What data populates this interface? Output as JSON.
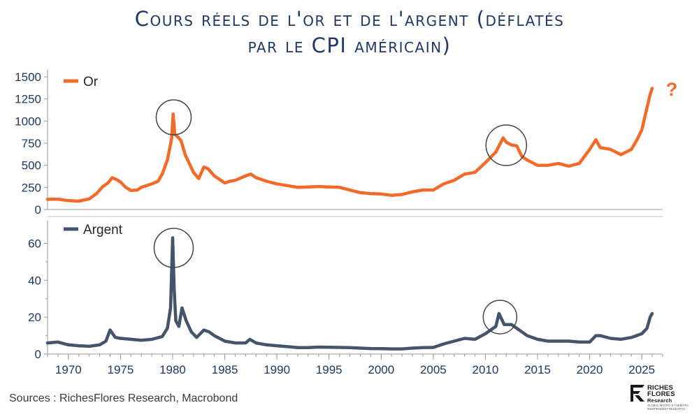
{
  "header": {
    "title_line1": "Cours réels de l'or et de l'argent (déflatés",
    "title_line2": "par le CPI américain)"
  },
  "footer": {
    "source": "Sources : RichesFlores Research, Macrobond"
  },
  "logo": {
    "line1": "Riches",
    "line2": "Flores",
    "line3": "Research",
    "tagline1": "GLOBAL MACRO & THEMATIC",
    "tagline2": "INDEPENDENT RESEARCH"
  },
  "chart_data": [
    {
      "type": "line",
      "title": "",
      "legend_position": "top-left",
      "series": [
        {
          "name": "Or",
          "color": "#f26b2a",
          "x": [
            1968,
            1969,
            1970,
            1971,
            1972,
            1972.7,
            1973.3,
            1973.8,
            1974.2,
            1974.6,
            1975,
            1975.5,
            1976,
            1976.6,
            1977,
            1977.5,
            1978,
            1978.6,
            1979,
            1979.5,
            1979.9,
            1980.05,
            1980.2,
            1980.5,
            1980.8,
            1981.2,
            1981.6,
            1982,
            1982.5,
            1983,
            1983.4,
            1984,
            1985,
            1985.5,
            1986,
            1987,
            1987.5,
            1988,
            1989,
            1990,
            1991,
            1992,
            1993,
            1994,
            1995,
            1996,
            1997,
            1998,
            1999,
            2000,
            2001,
            2002,
            2003,
            2004,
            2005,
            2006,
            2007,
            2008,
            2009,
            2010,
            2011,
            2011.7,
            2012,
            2012.5,
            2013,
            2013.5,
            2014,
            2015,
            2016,
            2017,
            2018,
            2019,
            2020,
            2020.6,
            2021,
            2022,
            2023,
            2024,
            2024.5,
            2025,
            2025.3,
            2025.6,
            2025.8,
            2026
          ],
          "y": [
            115,
            118,
            100,
            95,
            120,
            180,
            260,
            300,
            360,
            340,
            310,
            250,
            215,
            220,
            250,
            270,
            290,
            320,
            400,
            560,
            800,
            1080,
            850,
            820,
            780,
            620,
            520,
            420,
            350,
            480,
            460,
            380,
            300,
            320,
            330,
            380,
            400,
            360,
            320,
            290,
            270,
            250,
            255,
            260,
            255,
            250,
            220,
            190,
            180,
            175,
            160,
            170,
            200,
            220,
            220,
            290,
            330,
            400,
            420,
            530,
            650,
            810,
            760,
            730,
            720,
            600,
            560,
            500,
            500,
            520,
            490,
            520,
            680,
            790,
            700,
            680,
            620,
            680,
            780,
            900,
            1050,
            1200,
            1300,
            1370
          ]
        }
      ],
      "xlim": [
        1968,
        2027
      ],
      "ylim": [
        0,
        1500
      ],
      "yticks": [
        0,
        250,
        500,
        750,
        1000,
        1250,
        1500
      ],
      "annotations": [
        "?"
      ]
    },
    {
      "type": "line",
      "title": "",
      "legend_position": "top-left",
      "series": [
        {
          "name": "Argent",
          "color": "#44546a",
          "x": [
            1968,
            1969,
            1970,
            1971,
            1972,
            1973,
            1973.6,
            1974,
            1974.5,
            1975,
            1976,
            1977,
            1978,
            1979,
            1979.5,
            1979.8,
            1980,
            1980.15,
            1980.3,
            1980.6,
            1980.9,
            1981.3,
            1981.8,
            1982.3,
            1983,
            1983.5,
            1984,
            1985,
            1986,
            1987,
            1987.4,
            1988,
            1989,
            1990,
            1991,
            1992,
            1993,
            1994,
            1995,
            1996,
            1997,
            1998,
            1999,
            2000,
            2001,
            2002,
            2003,
            2004,
            2005,
            2006,
            2007,
            2008,
            2009,
            2010,
            2011,
            2011.3,
            2011.8,
            2012.5,
            2013,
            2014,
            2015,
            2016,
            2017,
            2018,
            2019,
            2020,
            2020.6,
            2021,
            2022,
            2023,
            2024,
            2025,
            2025.5,
            2025.8,
            2026
          ],
          "y": [
            6,
            6.5,
            5,
            4.5,
            4.2,
            5,
            7,
            13,
            9,
            8.5,
            8,
            7.5,
            8,
            9.5,
            14,
            25,
            63,
            35,
            18,
            15,
            25,
            18,
            12,
            9,
            13,
            12,
            10,
            7,
            6,
            6,
            8,
            6,
            5,
            4.5,
            4,
            3.5,
            3.5,
            3.8,
            3.7,
            3.6,
            3.5,
            3.2,
            3,
            2.9,
            2.8,
            2.8,
            3.2,
            3.5,
            3.6,
            5.5,
            7,
            8.5,
            8,
            11,
            15,
            22,
            16,
            16,
            14,
            10,
            8,
            7,
            7,
            7,
            6.5,
            6.5,
            10,
            10,
            8.5,
            8,
            9,
            11,
            14,
            20,
            22
          ]
        }
      ],
      "xlim": [
        1968,
        2027
      ],
      "ylim": [
        0,
        70
      ],
      "yticks": [
        0,
        20,
        40,
        60
      ],
      "xticks": [
        1970,
        1975,
        1980,
        1985,
        1990,
        1995,
        2000,
        2005,
        2010,
        2015,
        2020,
        2025
      ]
    }
  ]
}
